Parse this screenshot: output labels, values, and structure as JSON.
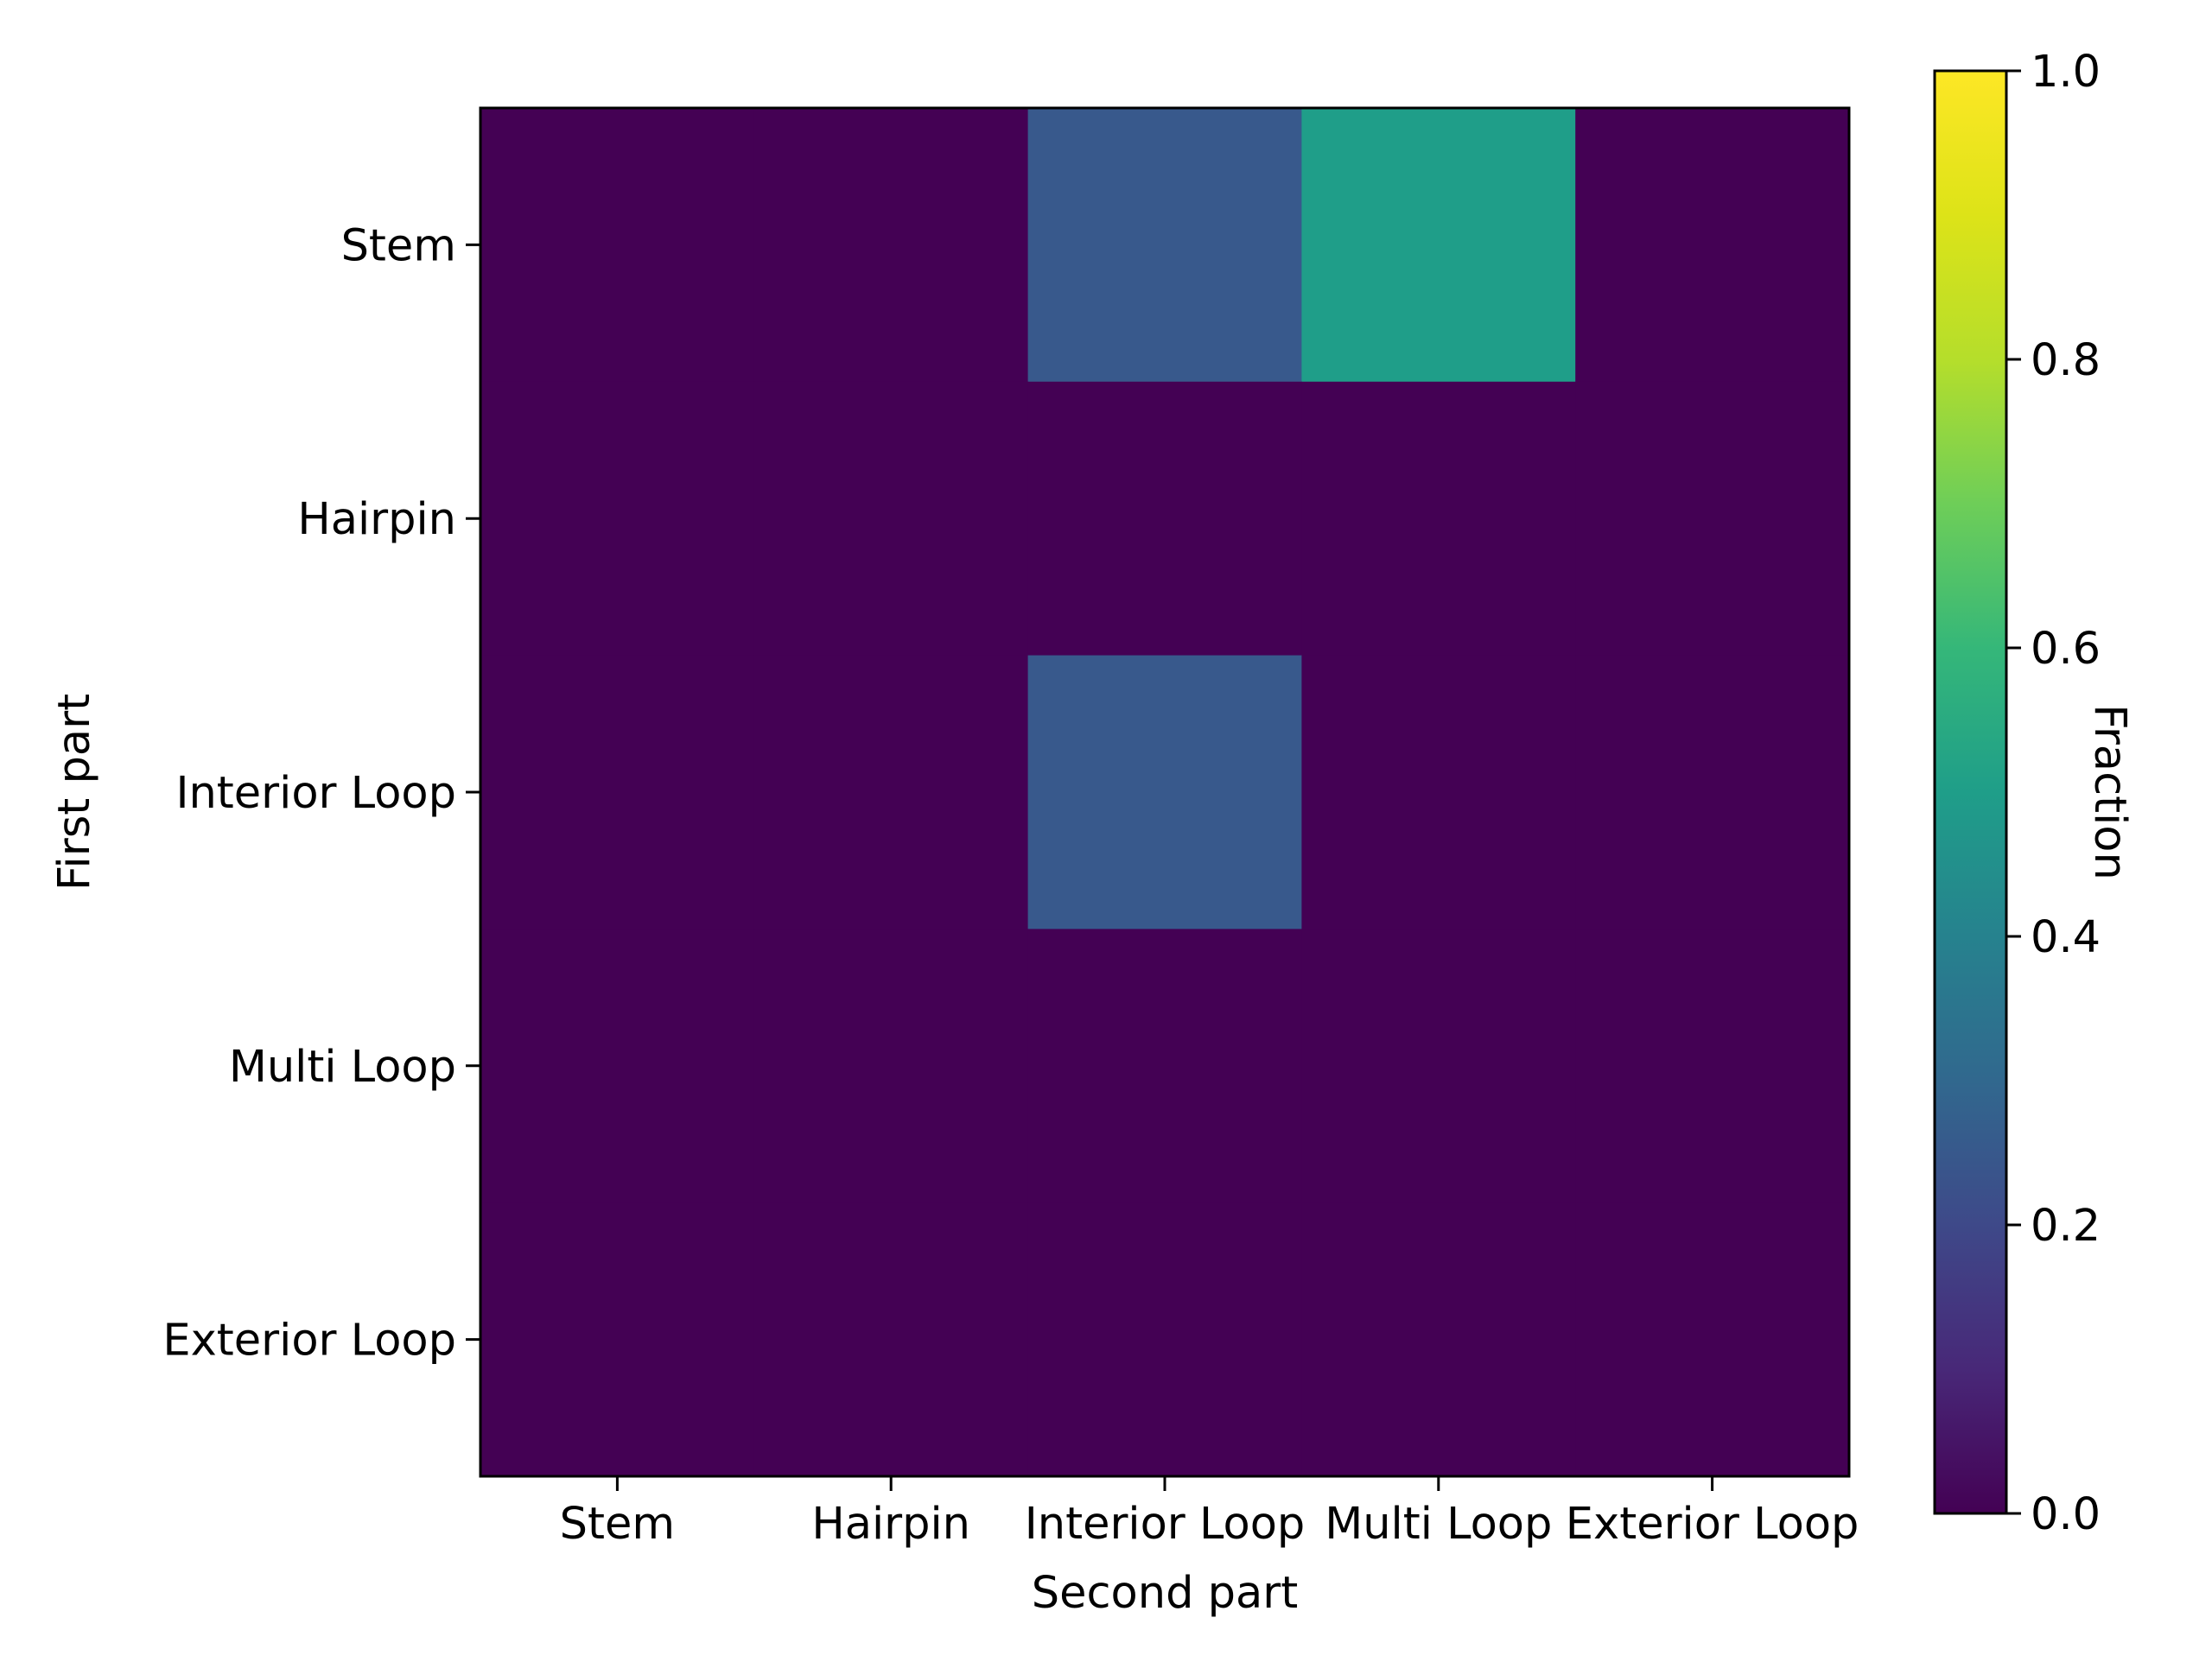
{
  "chart_data": {
    "type": "heatmap",
    "xlabel": "Second part",
    "ylabel": "First part",
    "x_categories": [
      "Stem",
      "Hairpin",
      "Interior Loop",
      "Multi Loop",
      "Exterior Loop"
    ],
    "y_categories": [
      "Stem",
      "Hairpin",
      "Interior Loop",
      "Multi Loop",
      "Exterior Loop"
    ],
    "values": [
      [
        0.0,
        0.0,
        0.25,
        0.5,
        0.0
      ],
      [
        0.0,
        0.0,
        0.0,
        0.0,
        0.0
      ],
      [
        0.0,
        0.0,
        0.25,
        0.0,
        0.0
      ],
      [
        0.0,
        0.0,
        0.0,
        0.0,
        0.0
      ],
      [
        0.0,
        0.0,
        0.0,
        0.0,
        0.0
      ]
    ],
    "colorbar": {
      "label": "Fraction",
      "range": [
        0.0,
        1.0
      ],
      "ticks": [
        "0.0",
        "0.2",
        "0.4",
        "0.6",
        "0.8",
        "1.0"
      ],
      "colormap": "viridis"
    },
    "grid": false
  }
}
